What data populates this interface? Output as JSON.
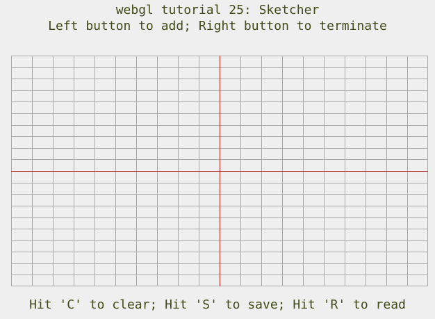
{
  "header": {
    "title": "webgl tutorial 25: Sketcher",
    "instructions": "Left button to add; Right button to terminate"
  },
  "footer": {
    "hint": "Hit 'C' to clear; Hit 'S' to save; Hit 'R' to read"
  },
  "canvas": {
    "background_color": "#efefef",
    "grid_color": "#a8a8a8",
    "axis_color": "#b22222",
    "grid_columns": 20,
    "grid_rows": 20
  }
}
